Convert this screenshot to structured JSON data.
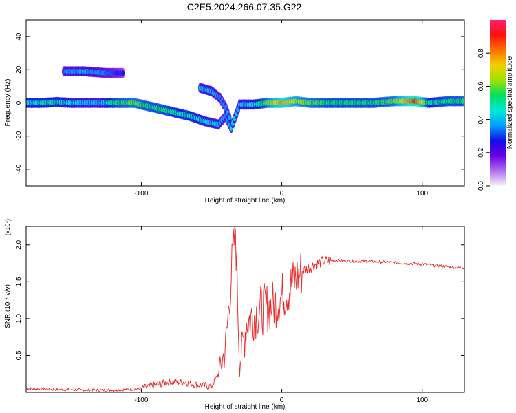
{
  "title": "C2E5.2024.266.07.35.G22",
  "chart_data": [
    {
      "type": "heatmap",
      "xlabel": "Height of straight line (km)",
      "ylabel": "Frequency (Hz)",
      "xlim": [
        -182,
        130
      ],
      "ylim": [
        -50,
        50
      ],
      "xticks": [
        -100,
        0,
        100
      ],
      "yticks": [
        -40,
        -20,
        0,
        20,
        40
      ],
      "colorbar": {
        "label": "Normalized spectral amplitude",
        "range": [
          0,
          1
        ],
        "ticks": [
          0.0,
          0.2,
          0.4,
          0.6,
          0.8
        ],
        "colors": [
          "#f4f4f4",
          "#b06ff0",
          "#6a00e0",
          "#1010e8",
          "#00a0ff",
          "#00e8d8",
          "#00e060",
          "#a0e000",
          "#f0d000",
          "#ff7000",
          "#ff1010",
          "#ff2070"
        ]
      },
      "ridge": [
        {
          "x": -182,
          "y": 0,
          "a": 0.45
        },
        {
          "x": -170,
          "y": 0,
          "a": 0.5
        },
        {
          "x": -160,
          "y": 0.5,
          "a": 0.5
        },
        {
          "x": -150,
          "y": 0,
          "a": 0.45
        },
        {
          "x": -140,
          "y": 0,
          "a": 0.4
        },
        {
          "x": -130,
          "y": 0,
          "a": 0.4
        },
        {
          "x": -118,
          "y": 0,
          "a": 0.55
        },
        {
          "x": -105,
          "y": 0,
          "a": 0.6
        },
        {
          "x": -95,
          "y": -2,
          "a": 0.55
        },
        {
          "x": -85,
          "y": -4,
          "a": 0.55
        },
        {
          "x": -75,
          "y": -6,
          "a": 0.5
        },
        {
          "x": -65,
          "y": -8,
          "a": 0.5
        },
        {
          "x": -55,
          "y": -11,
          "a": 0.45
        },
        {
          "x": -45,
          "y": -13,
          "a": 0.4
        },
        {
          "x": -40,
          "y": -8,
          "a": 0.35
        },
        {
          "x": -36,
          "y": -15,
          "a": 0.45
        },
        {
          "x": -30,
          "y": -1,
          "a": 0.4
        },
        {
          "x": -20,
          "y": -1,
          "a": 0.45
        },
        {
          "x": -10,
          "y": 0,
          "a": 0.6
        },
        {
          "x": 0,
          "y": 0,
          "a": 0.8
        },
        {
          "x": 10,
          "y": 1,
          "a": 0.65
        },
        {
          "x": 20,
          "y": 0,
          "a": 0.6
        },
        {
          "x": 35,
          "y": 0,
          "a": 0.55
        },
        {
          "x": 50,
          "y": 0,
          "a": 0.55
        },
        {
          "x": 65,
          "y": 0,
          "a": 0.55
        },
        {
          "x": 80,
          "y": 1,
          "a": 0.6
        },
        {
          "x": 95,
          "y": 1,
          "a": 0.9
        },
        {
          "x": 105,
          "y": 0,
          "a": 0.5
        },
        {
          "x": 118,
          "y": 1,
          "a": 0.55
        },
        {
          "x": 130,
          "y": 1,
          "a": 0.55
        }
      ],
      "secondary": [
        {
          "x": -155,
          "y": 19,
          "a": 0.35
        },
        {
          "x": -140,
          "y": 19,
          "a": 0.4
        },
        {
          "x": -125,
          "y": 18,
          "a": 0.35
        },
        {
          "x": -112,
          "y": 18,
          "a": 0.25
        },
        {
          "x": -58,
          "y": 9,
          "a": 0.4
        },
        {
          "x": -50,
          "y": 7,
          "a": 0.4
        },
        {
          "x": -44,
          "y": 3,
          "a": 0.35
        },
        {
          "x": -40,
          "y": -3,
          "a": 0.35
        },
        {
          "x": -36,
          "y": -12,
          "a": 0.4
        }
      ]
    },
    {
      "type": "line",
      "xlabel": "Height of straight line (km)",
      "ylabel": "SNR (10 * v/v)",
      "yunit_label": "(x10⁴)",
      "xlim": [
        -182,
        130
      ],
      "ylim": [
        0,
        2.25
      ],
      "xticks": [
        -100,
        0,
        100
      ],
      "yticks": [
        0.5,
        1.0,
        1.5,
        2.0
      ],
      "line_color": "#e83030",
      "series": [
        {
          "x": [
            -182,
            -160,
            -140,
            -120,
            -100,
            -90,
            -80,
            -70,
            -60,
            -50,
            -45,
            -40,
            -36,
            -33,
            -30,
            -25,
            -20,
            -15,
            -10,
            -5,
            0,
            5,
            10,
            15,
            20,
            25,
            30,
            40,
            50,
            60,
            70,
            80,
            90,
            100,
            110,
            120,
            130
          ],
          "values": [
            0.05,
            0.04,
            0.03,
            0.03,
            0.05,
            0.1,
            0.14,
            0.14,
            0.1,
            0.08,
            0.25,
            0.6,
            1.6,
            2.25,
            0.4,
            0.95,
            1.05,
            1.12,
            1.15,
            1.2,
            1.3,
            1.4,
            1.55,
            1.65,
            1.7,
            1.75,
            1.78,
            1.79,
            1.78,
            1.78,
            1.77,
            1.76,
            1.75,
            1.74,
            1.72,
            1.7,
            1.69
          ]
        }
      ]
    }
  ]
}
